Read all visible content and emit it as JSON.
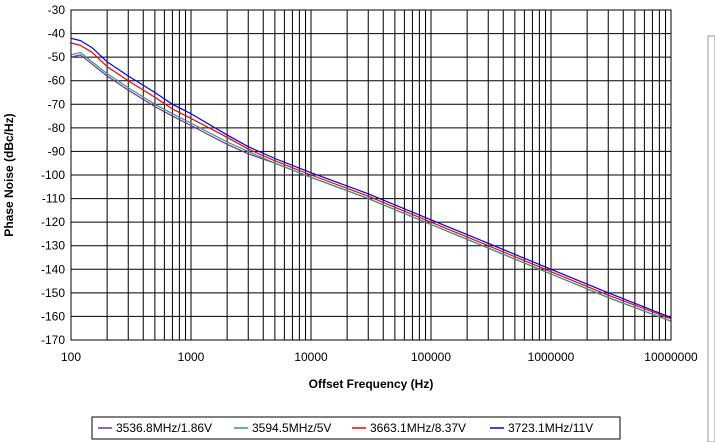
{
  "chart_data": {
    "type": "line",
    "xlabel": "Offset Frequency (Hz)",
    "ylabel": "Phase Noise (dBc/Hz)",
    "x_scale": "log",
    "xlim": [
      100,
      10000000
    ],
    "ylim": [
      -170,
      -30
    ],
    "x_ticks": [
      "100",
      "1000",
      "10000",
      "100000",
      "1000000",
      "10000000"
    ],
    "y_ticks": [
      "-30",
      "-40",
      "-50",
      "-60",
      "-70",
      "-80",
      "-90",
      "-100",
      "-110",
      "-120",
      "-130",
      "-140",
      "-150",
      "-160",
      "-170"
    ],
    "grid": true,
    "legend_position": "bottom",
    "x": [
      100,
      120,
      150,
      200,
      300,
      500,
      700,
      1000,
      2000,
      3000,
      5000,
      10000,
      30000,
      100000,
      300000,
      1000000,
      3000000,
      10000000
    ],
    "series": [
      {
        "name": "3536.8MHz/1.86V",
        "color": "#7030A0",
        "values": [
          -50,
          -49,
          -53,
          -58,
          -64,
          -71,
          -75,
          -79,
          -87,
          -91,
          -95,
          -101,
          -110,
          -121,
          -131,
          -142,
          -152,
          -162
        ]
      },
      {
        "name": "3594.5MHz/5V",
        "color": "#339980",
        "values": [
          -49,
          -48,
          -52,
          -57,
          -63,
          -70,
          -74,
          -78,
          -86,
          -90,
          -95,
          -101,
          -110,
          -121,
          -131,
          -142,
          -152,
          -162
        ]
      },
      {
        "name": "3663.1MHz/8.37V",
        "color": "#FF0000",
        "values": [
          -44,
          -45,
          -48,
          -54,
          -60,
          -67,
          -72,
          -76,
          -84,
          -89,
          -94,
          -100,
          -109,
          -120,
          -130,
          -141,
          -151,
          -161
        ]
      },
      {
        "name": "3723.1MHz/11V",
        "color": "#0000FF",
        "values": [
          -42,
          -43,
          -46,
          -52,
          -58,
          -65,
          -70,
          -74,
          -83,
          -88,
          -93,
          -99,
          -108,
          -119,
          -129,
          -140,
          -150,
          -160.5
        ]
      }
    ]
  }
}
